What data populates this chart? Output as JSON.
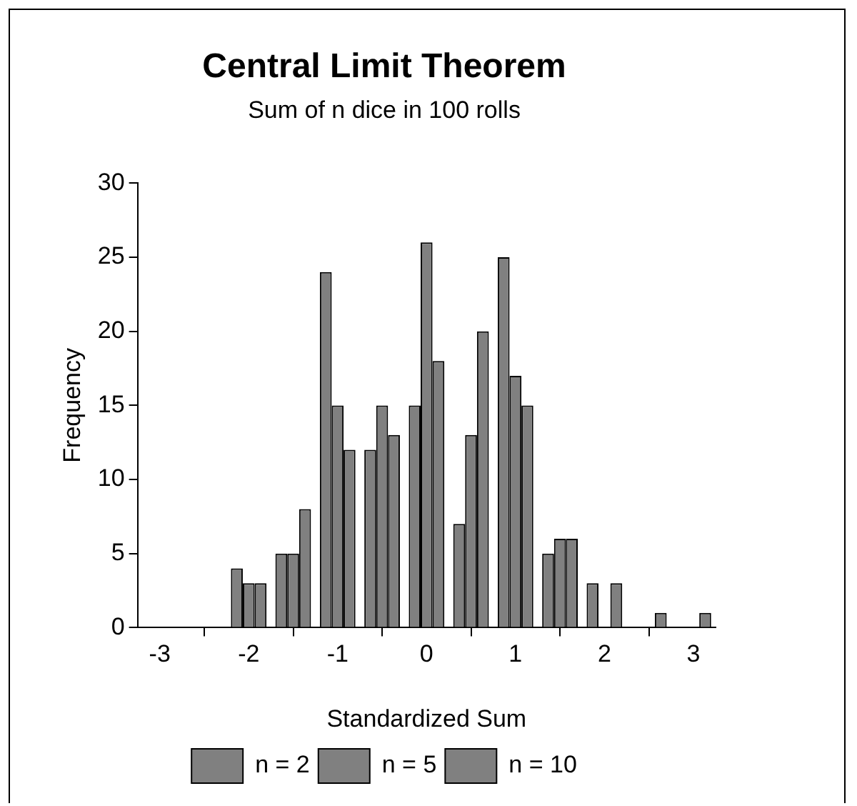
{
  "chart_data": {
    "type": "bar",
    "title": "Central Limit Theorem",
    "subtitle": "Sum of n dice in 100 rolls",
    "xlabel": "Standardized Sum",
    "ylabel": "Frequency",
    "x": [
      -3,
      -2.5,
      -2,
      -1.5,
      -1,
      -0.5,
      0,
      0.5,
      1,
      1.5,
      2,
      2.5,
      3
    ],
    "series": [
      {
        "name": "n = 2",
        "color": "#808080",
        "values": [
          0,
          0,
          4,
          5,
          24,
          12,
          15,
          7,
          25,
          5,
          3,
          0,
          0
        ]
      },
      {
        "name": "n = 5",
        "color": "#808080",
        "values": [
          0,
          0,
          3,
          5,
          15,
          15,
          26,
          13,
          17,
          6,
          0,
          0,
          0
        ]
      },
      {
        "name": "n = 10",
        "color": "#808080",
        "values": [
          0,
          0,
          3,
          8,
          12,
          13,
          18,
          20,
          15,
          6,
          3,
          1,
          1
        ]
      }
    ],
    "xlim": [
      -3.25,
      3.25
    ],
    "xticks": [
      -3,
      -2,
      -1,
      0,
      1,
      2,
      3
    ],
    "ylim": [
      0,
      30
    ],
    "yticks": [
      0,
      5,
      10,
      15,
      20,
      25,
      30
    ],
    "grid": false,
    "legend": "bottom"
  }
}
